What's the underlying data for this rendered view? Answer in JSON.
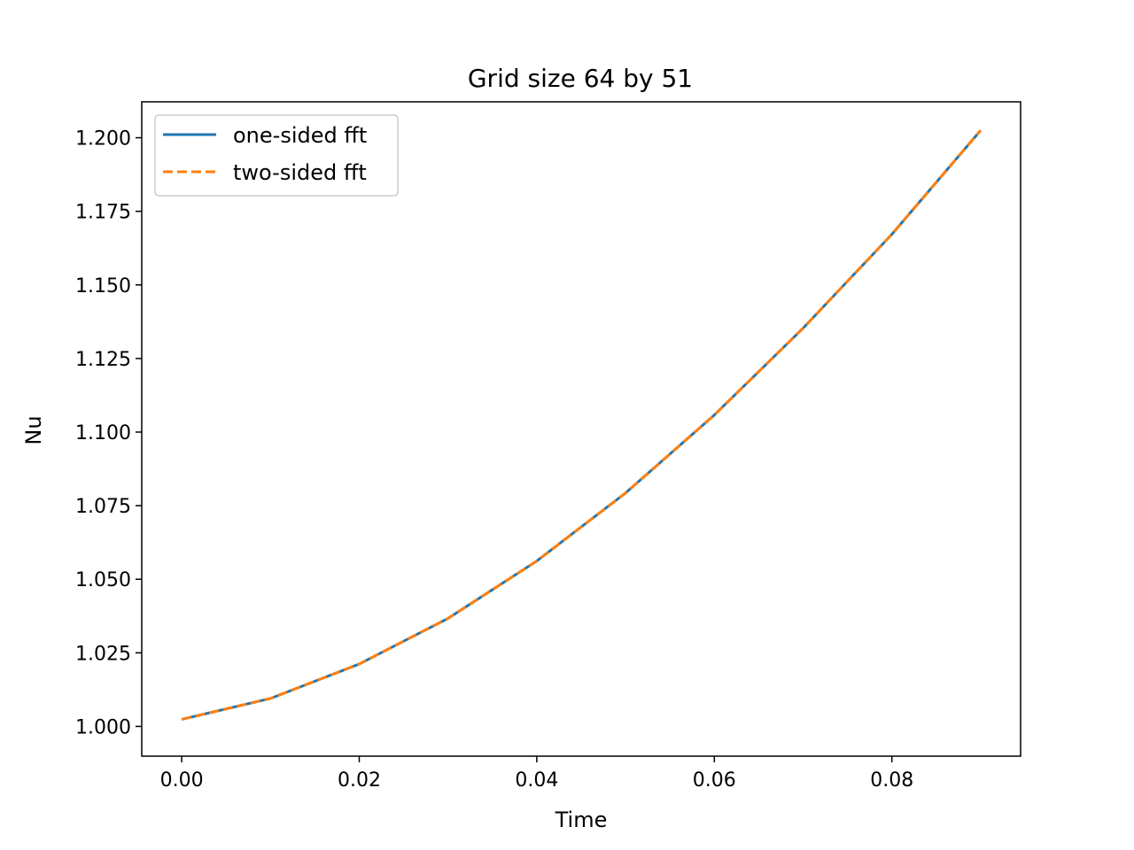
{
  "chart_data": {
    "type": "line",
    "title": "Grid size 64 by 51",
    "xlabel": "Time",
    "ylabel": "Nu",
    "xlim": [
      -0.0045,
      0.0945
    ],
    "ylim": [
      0.9899,
      1.2122
    ],
    "xticks": [
      0.0,
      0.02,
      0.04,
      0.06,
      0.08
    ],
    "xtick_labels": [
      "0.00",
      "0.02",
      "0.04",
      "0.06",
      "0.08"
    ],
    "yticks": [
      1.0,
      1.025,
      1.05,
      1.075,
      1.1,
      1.125,
      1.15,
      1.175,
      1.2
    ],
    "ytick_labels": [
      "1.000",
      "1.025",
      "1.050",
      "1.075",
      "1.100",
      "1.125",
      "1.150",
      "1.175",
      "1.200"
    ],
    "grid": false,
    "legend_position": "top-left",
    "x": [
      0.0,
      0.01,
      0.02,
      0.03,
      0.04,
      0.05,
      0.06,
      0.07,
      0.08,
      0.09
    ],
    "series": [
      {
        "name": "one-sided fft",
        "color": "#1f77b4",
        "style": "solid",
        "values": [
          1.0024,
          1.0095,
          1.0212,
          1.0367,
          1.0562,
          1.0793,
          1.1058,
          1.1353,
          1.1672,
          1.2025
        ]
      },
      {
        "name": "two-sided fft",
        "color": "#ff7f0e",
        "style": "dashed",
        "values": [
          1.0024,
          1.0095,
          1.0212,
          1.0367,
          1.0562,
          1.0793,
          1.1058,
          1.1353,
          1.1672,
          1.2025
        ]
      }
    ]
  }
}
